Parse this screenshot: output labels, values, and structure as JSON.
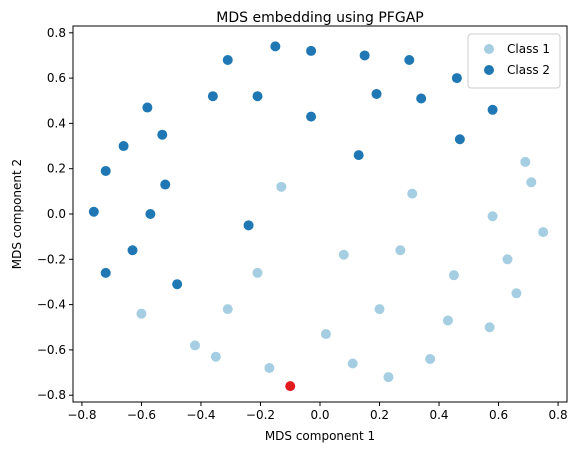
{
  "chart_data": {
    "type": "scatter",
    "title": "MDS embedding using PFGAP",
    "xlabel": "MDS component 1",
    "ylabel": "MDS component 2",
    "xlim": [
      -0.83,
      0.83
    ],
    "ylim": [
      -0.83,
      0.83
    ],
    "xticks": [
      -0.8,
      -0.6,
      -0.4,
      -0.2,
      0.0,
      0.2,
      0.4,
      0.6,
      0.8
    ],
    "yticks": [
      -0.8,
      -0.6,
      -0.4,
      -0.2,
      0.0,
      0.2,
      0.4,
      0.6,
      0.8
    ],
    "xtick_labels": [
      "−0.8",
      "−0.6",
      "−0.4",
      "−0.2",
      "0.0",
      "0.2",
      "0.4",
      "0.6",
      "0.8"
    ],
    "ytick_labels": [
      "−0.8",
      "−0.6",
      "−0.4",
      "−0.2",
      "0.0",
      "0.2",
      "0.4",
      "0.6",
      "0.8"
    ],
    "grid": false,
    "legend_position": "top-right",
    "series": [
      {
        "name": "Class 1",
        "color": "#a6cee3",
        "points": [
          [
            -0.13,
            0.12
          ],
          [
            0.31,
            0.09
          ],
          [
            0.69,
            0.23
          ],
          [
            0.71,
            0.14
          ],
          [
            0.58,
            -0.01
          ],
          [
            0.75,
            -0.08
          ],
          [
            0.63,
            -0.2
          ],
          [
            0.27,
            -0.16
          ],
          [
            0.08,
            -0.18
          ],
          [
            0.45,
            -0.27
          ],
          [
            -0.21,
            -0.26
          ],
          [
            0.66,
            -0.35
          ],
          [
            0.43,
            -0.47
          ],
          [
            0.57,
            -0.5
          ],
          [
            -0.6,
            -0.44
          ],
          [
            -0.31,
            -0.42
          ],
          [
            0.2,
            -0.42
          ],
          [
            0.02,
            -0.53
          ],
          [
            -0.42,
            -0.58
          ],
          [
            -0.35,
            -0.63
          ],
          [
            0.37,
            -0.64
          ],
          [
            0.11,
            -0.66
          ],
          [
            -0.17,
            -0.68
          ],
          [
            0.23,
            -0.72
          ]
        ]
      },
      {
        "name": "Class 2",
        "color": "#1f78b4",
        "points": [
          [
            -0.15,
            0.74
          ],
          [
            -0.03,
            0.72
          ],
          [
            0.15,
            0.7
          ],
          [
            0.3,
            0.68
          ],
          [
            -0.31,
            0.68
          ],
          [
            0.46,
            0.6
          ],
          [
            0.19,
            0.53
          ],
          [
            -0.36,
            0.52
          ],
          [
            -0.21,
            0.52
          ],
          [
            0.34,
            0.51
          ],
          [
            -0.58,
            0.47
          ],
          [
            0.58,
            0.46
          ],
          [
            -0.03,
            0.43
          ],
          [
            -0.53,
            0.35
          ],
          [
            0.47,
            0.33
          ],
          [
            -0.66,
            0.3
          ],
          [
            0.13,
            0.26
          ],
          [
            -0.72,
            0.19
          ],
          [
            -0.52,
            0.13
          ],
          [
            -0.76,
            0.01
          ],
          [
            -0.57,
            0.0
          ],
          [
            -0.24,
            -0.05
          ],
          [
            -0.63,
            -0.16
          ],
          [
            -0.72,
            -0.26
          ],
          [
            -0.48,
            -0.31
          ]
        ]
      },
      {
        "color": "#e31a1c",
        "points": [
          [
            -0.1,
            -0.76
          ]
        ]
      }
    ]
  }
}
